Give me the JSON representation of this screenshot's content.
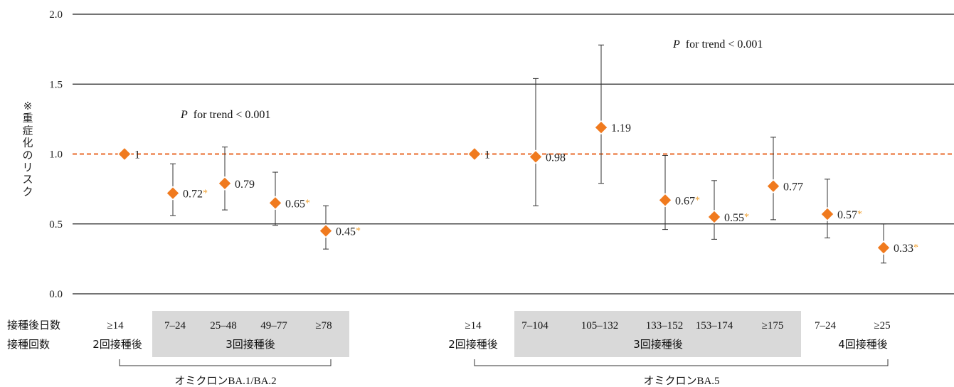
{
  "chart_data": {
    "type": "scatter",
    "ylabel": "※重症化のリスク",
    "ylim": [
      0,
      2
    ],
    "yticks": [
      "0.0",
      "0.5",
      "1.0",
      "1.5",
      "2.0"
    ],
    "reference_line": 1.0,
    "grid": "horizontal",
    "colors": {
      "marker": "#f07a1e",
      "reference": "#e8692a",
      "asterisk": "#f0a030",
      "shade": "#d9d9d9"
    },
    "row_labels": {
      "days": "接種後日数",
      "doses": "接種回数"
    },
    "groups": [
      {
        "name": "オミクロンBA.1/BA.2",
        "trend": "for trend < 0.001",
        "trend_p": "P",
        "dose_labels": [
          {
            "text": "2回接種後",
            "shaded": false
          },
          {
            "text": "3回接種後",
            "shaded": true
          }
        ],
        "points": [
          {
            "days": "≥14",
            "value": 1.0,
            "lower": null,
            "upper": null,
            "label": "1",
            "sig": false
          },
          {
            "days": "7–24",
            "value": 0.72,
            "lower": 0.56,
            "upper": 0.93,
            "label": "0.72",
            "sig": true
          },
          {
            "days": "25–48",
            "value": 0.79,
            "lower": 0.6,
            "upper": 1.05,
            "label": "0.79",
            "sig": false
          },
          {
            "days": "49–77",
            "value": 0.65,
            "lower": 0.49,
            "upper": 0.87,
            "label": "0.65",
            "sig": true
          },
          {
            "days": "≥78",
            "value": 0.45,
            "lower": 0.32,
            "upper": 0.63,
            "label": "0.45",
            "sig": true
          }
        ]
      },
      {
        "name": "オミクロンBA.5",
        "trend": "for trend < 0.001",
        "trend_p": "P",
        "dose_labels": [
          {
            "text": "2回接種後",
            "shaded": false
          },
          {
            "text": "3回接種後",
            "shaded": true
          },
          {
            "text": "4回接種後",
            "shaded": false
          }
        ],
        "points": [
          {
            "days": "≥14",
            "value": 1.0,
            "lower": null,
            "upper": null,
            "label": "1",
            "sig": false
          },
          {
            "days": "7–104",
            "value": 0.98,
            "lower": 0.63,
            "upper": 1.54,
            "label": "0.98",
            "sig": false
          },
          {
            "days": "105–132",
            "value": 1.19,
            "lower": 0.79,
            "upper": 1.78,
            "label": "1.19",
            "sig": false
          },
          {
            "days": "133–152",
            "value": 0.67,
            "lower": 0.46,
            "upper": 0.99,
            "label": "0.67",
            "sig": true
          },
          {
            "days": "153–174",
            "value": 0.55,
            "lower": 0.39,
            "upper": 0.81,
            "label": "0.55",
            "sig": true
          },
          {
            "days": "≥175",
            "value": 0.77,
            "lower": 0.53,
            "upper": 1.12,
            "label": "0.77",
            "sig": false
          },
          {
            "days": "7–24",
            "value": 0.57,
            "lower": 0.4,
            "upper": 0.82,
            "label": "0.57",
            "sig": true
          },
          {
            "days": "≥25",
            "value": 0.33,
            "lower": 0.22,
            "upper": 0.5,
            "label": "0.33",
            "sig": true
          }
        ]
      }
    ]
  }
}
